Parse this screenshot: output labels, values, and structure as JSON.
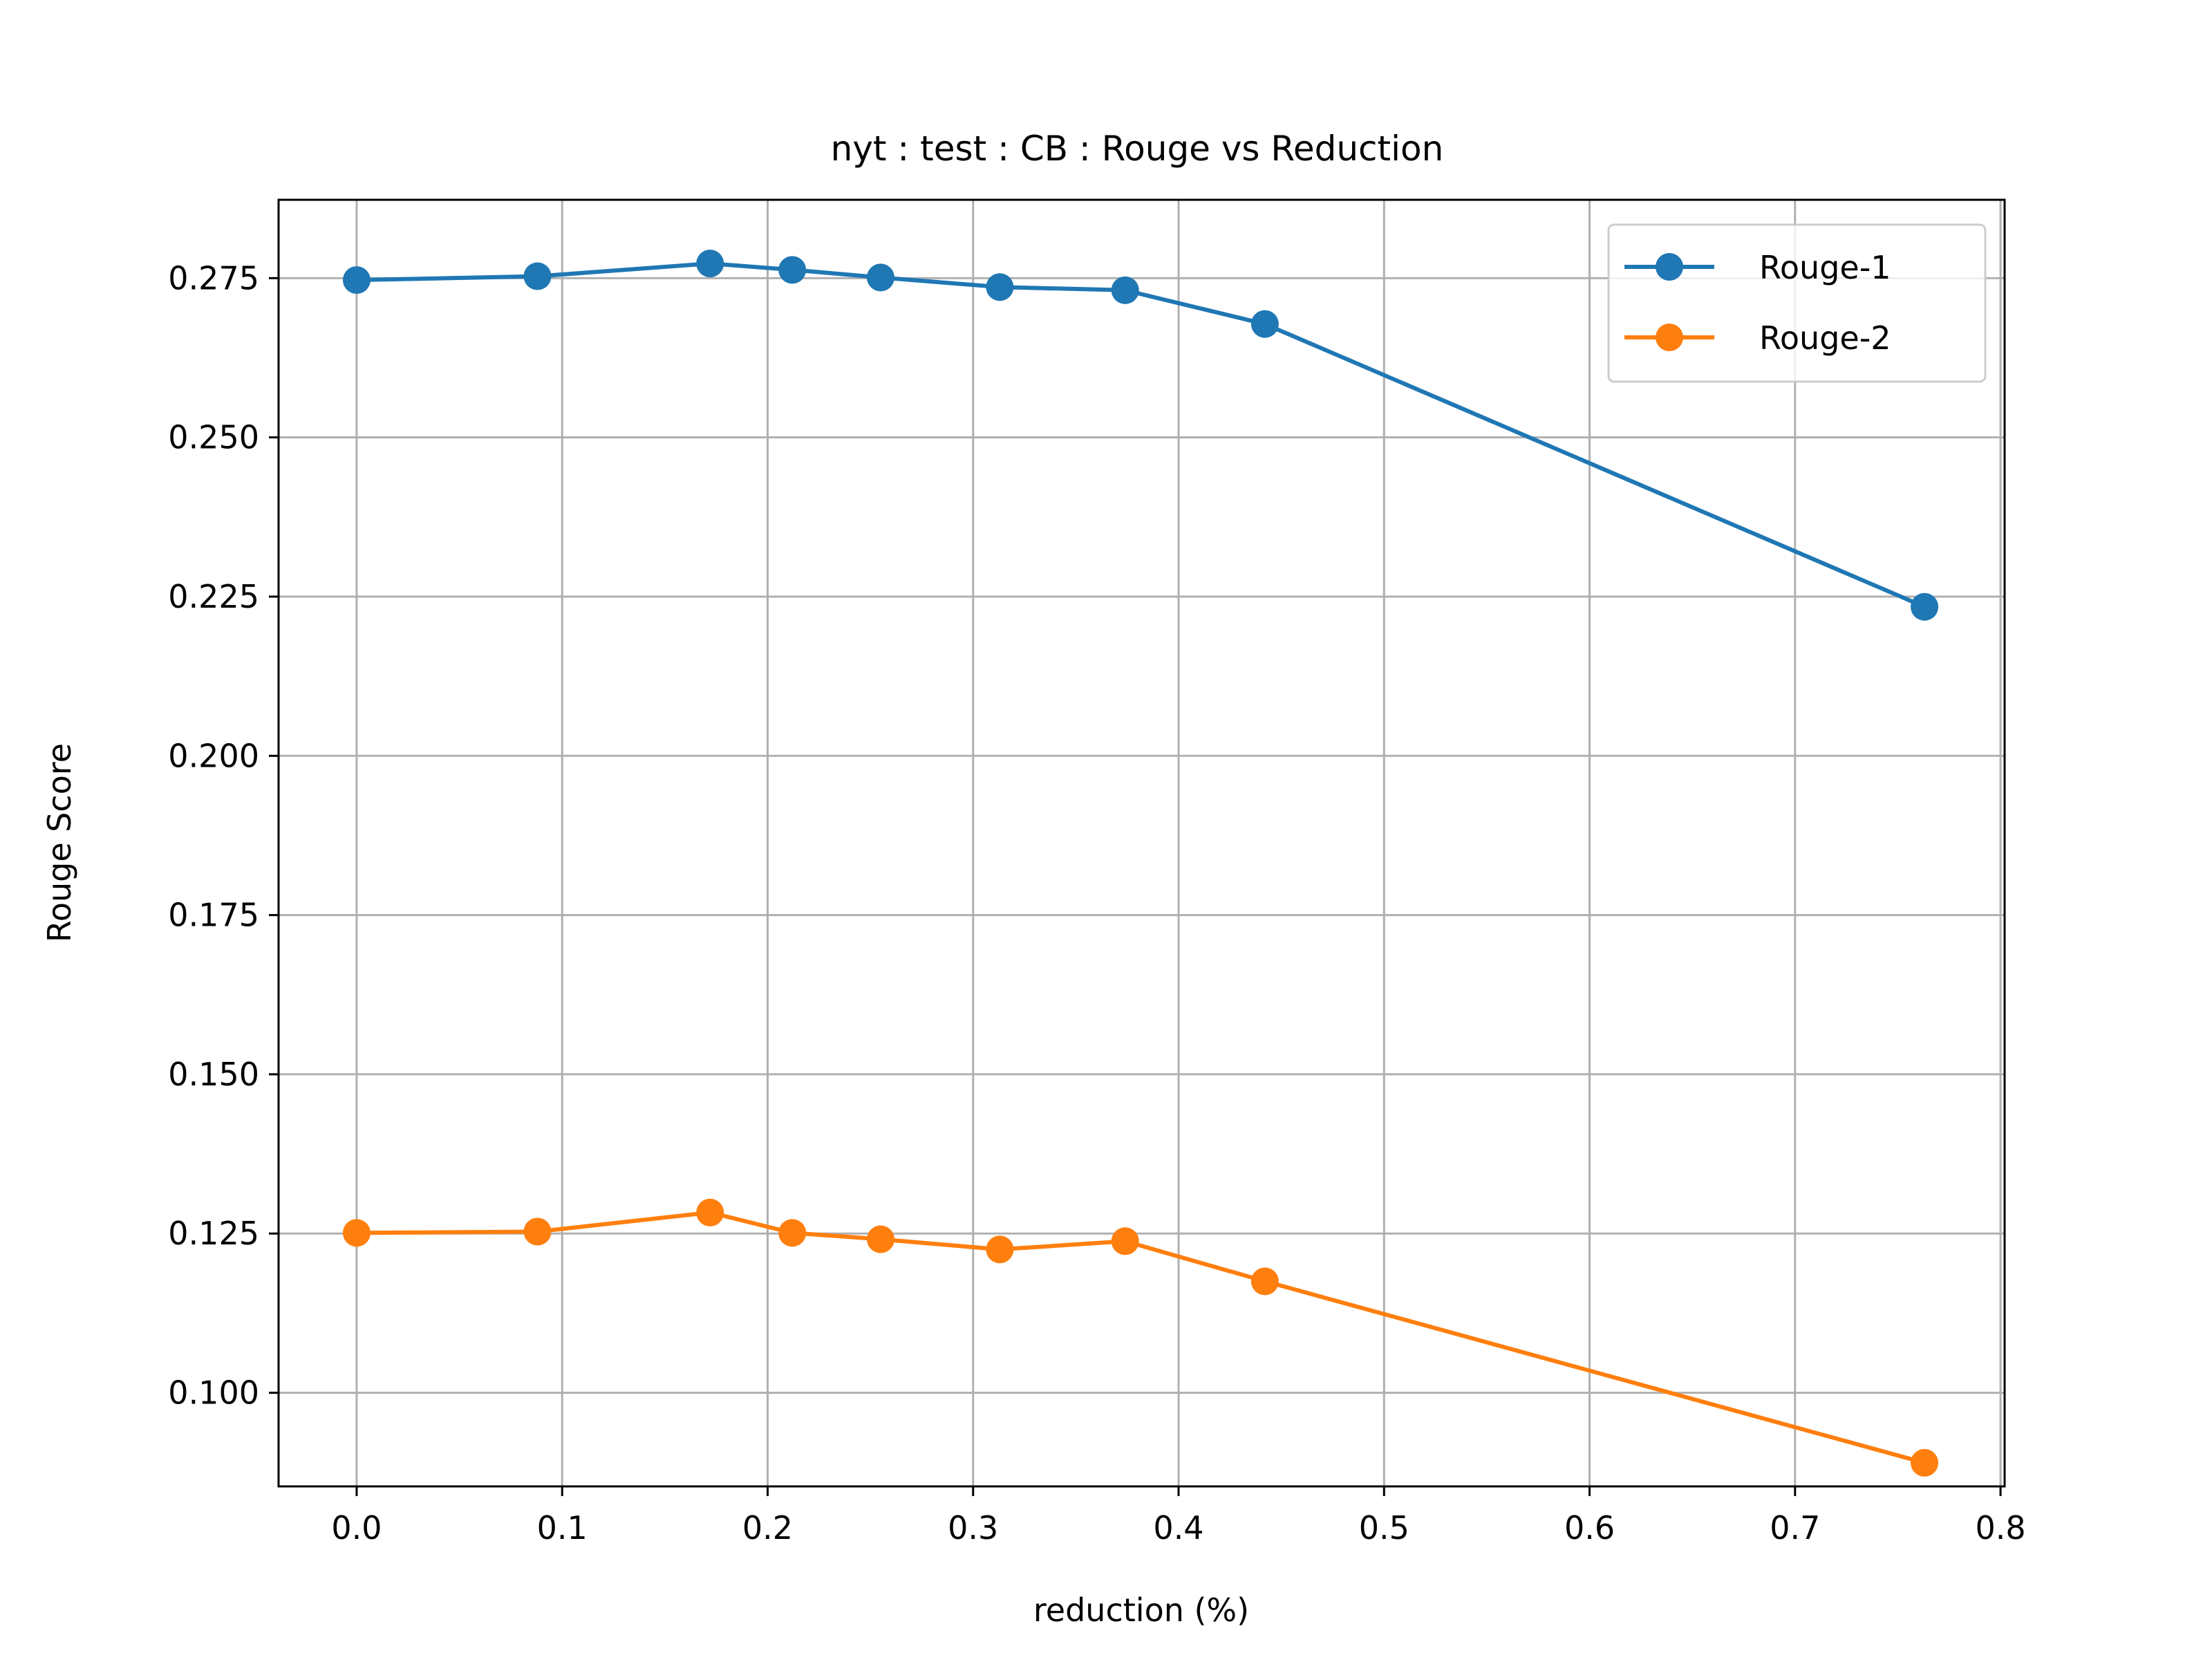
{
  "chart_data": {
    "type": "line",
    "title": "nyt : test : CB : Rouge vs Reduction",
    "xlabel": "reduction (%)",
    "ylabel": "Rouge Score",
    "xlim": [
      -0.038,
      0.802
    ],
    "ylim": [
      0.0853,
      0.2873
    ],
    "xticks": [
      "0.0",
      "0.1",
      "0.2",
      "0.3",
      "0.4",
      "0.5",
      "0.6",
      "0.7",
      "0.8"
    ],
    "yticks": [
      "0.100",
      "0.125",
      "0.150",
      "0.175",
      "0.200",
      "0.225",
      "0.250",
      "0.275"
    ],
    "grid": true,
    "legend_position": "upper right",
    "x": [
      0.0,
      0.088,
      0.172,
      0.212,
      0.255,
      0.313,
      0.374,
      0.442,
      0.763
    ],
    "series": [
      {
        "name": "Rouge-1",
        "color": "#1f77b4",
        "values": [
          0.2747,
          0.2753,
          0.2773,
          0.2763,
          0.2751,
          0.2736,
          0.2731,
          0.2678,
          0.2234
        ]
      },
      {
        "name": "Rouge-2",
        "color": "#ff7f0e",
        "values": [
          0.1251,
          0.1253,
          0.1283,
          0.1251,
          0.1241,
          0.1225,
          0.1238,
          0.1175,
          0.089
        ]
      }
    ]
  }
}
